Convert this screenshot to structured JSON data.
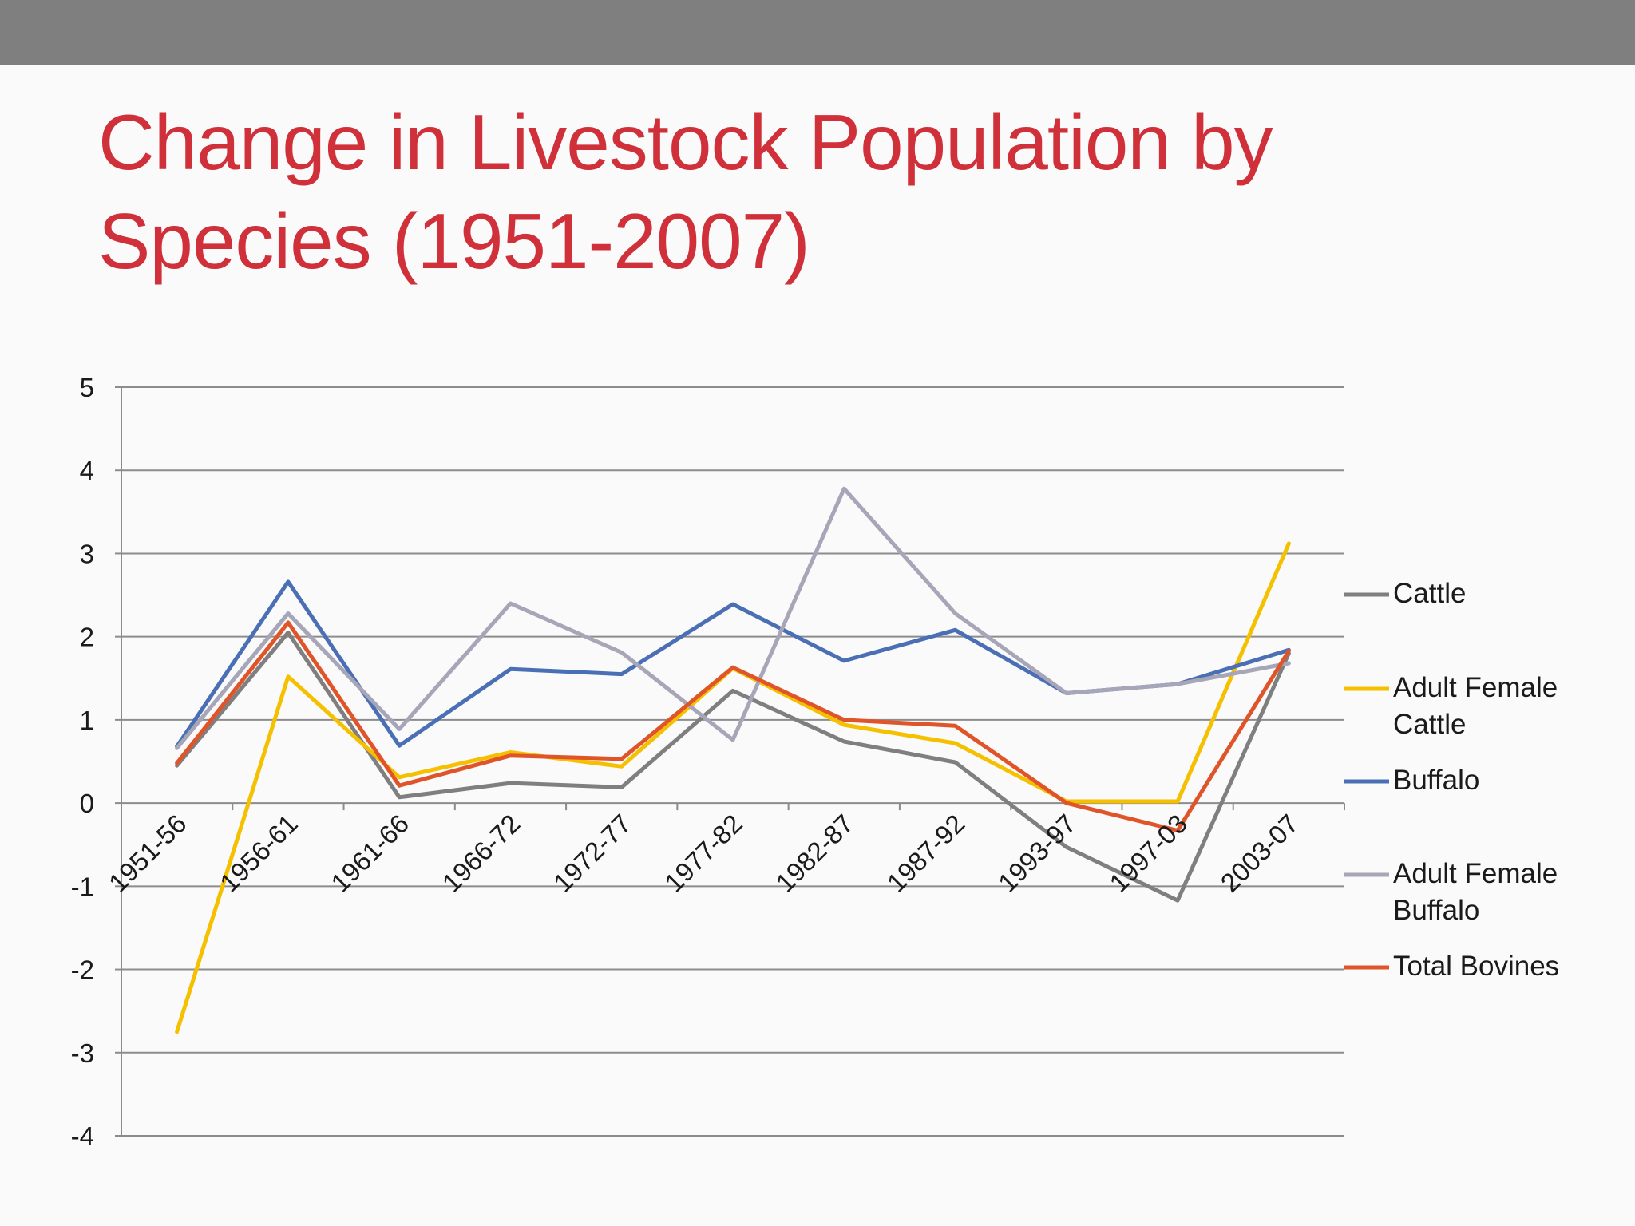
{
  "slide": {
    "title": "Change in Livestock Population by Species (1951-2007)"
  },
  "colors": {
    "top_bar": "#7f7f7f",
    "title": "#d0303a",
    "background": "#fafafa",
    "gridline": "#8c8c8c"
  },
  "chart_data": {
    "type": "line",
    "title": "",
    "xlabel": "",
    "ylabel": "",
    "ylim": [
      -4,
      5
    ],
    "yticks": [
      5,
      4,
      3,
      2,
      1,
      0,
      -1,
      -2,
      -3,
      -4
    ],
    "grid": true,
    "legend_position": "right",
    "categories": [
      "1951-56",
      "1956-61",
      "1961-66",
      "1966-72",
      "1972-77",
      "1977-82",
      "1982-87",
      "1987-92",
      "1993-97",
      "1997-03",
      "2003-07"
    ],
    "series": [
      {
        "name": "Cattle",
        "legend_lines": [
          "Cattle"
        ],
        "color": "#7f7f7f",
        "values": [
          0.45,
          2.05,
          0.07,
          0.24,
          0.19,
          1.35,
          0.74,
          0.49,
          -0.53,
          -1.17,
          1.8
        ]
      },
      {
        "name": "Adult Female Cattle",
        "legend_lines": [
          "Adult Female",
          "Cattle"
        ],
        "color": "#f5c000",
        "values": [
          -2.75,
          1.52,
          0.31,
          0.61,
          0.44,
          1.62,
          0.94,
          0.72,
          0.02,
          0.02,
          3.12
        ]
      },
      {
        "name": "Buffalo",
        "legend_lines": [
          "Buffalo"
        ],
        "color": "#4a6fb5",
        "values": [
          0.68,
          2.66,
          0.69,
          1.61,
          1.55,
          2.39,
          1.71,
          2.08,
          1.32,
          1.43,
          1.84
        ]
      },
      {
        "name": "Adult Female Buffalo",
        "legend_lines": [
          "Adult Female",
          "Buffalo"
        ],
        "color": "#a6a6b8",
        "values": [
          0.66,
          2.28,
          0.89,
          2.4,
          1.81,
          0.76,
          3.78,
          2.28,
          1.32,
          1.43,
          1.68
        ]
      },
      {
        "name": "Total Bovines",
        "legend_lines": [
          "Total Bovines"
        ],
        "color": "#e0542a",
        "values": [
          0.48,
          2.17,
          0.21,
          0.57,
          0.53,
          1.63,
          1.0,
          0.93,
          0.0,
          -0.33,
          1.83
        ]
      }
    ]
  }
}
